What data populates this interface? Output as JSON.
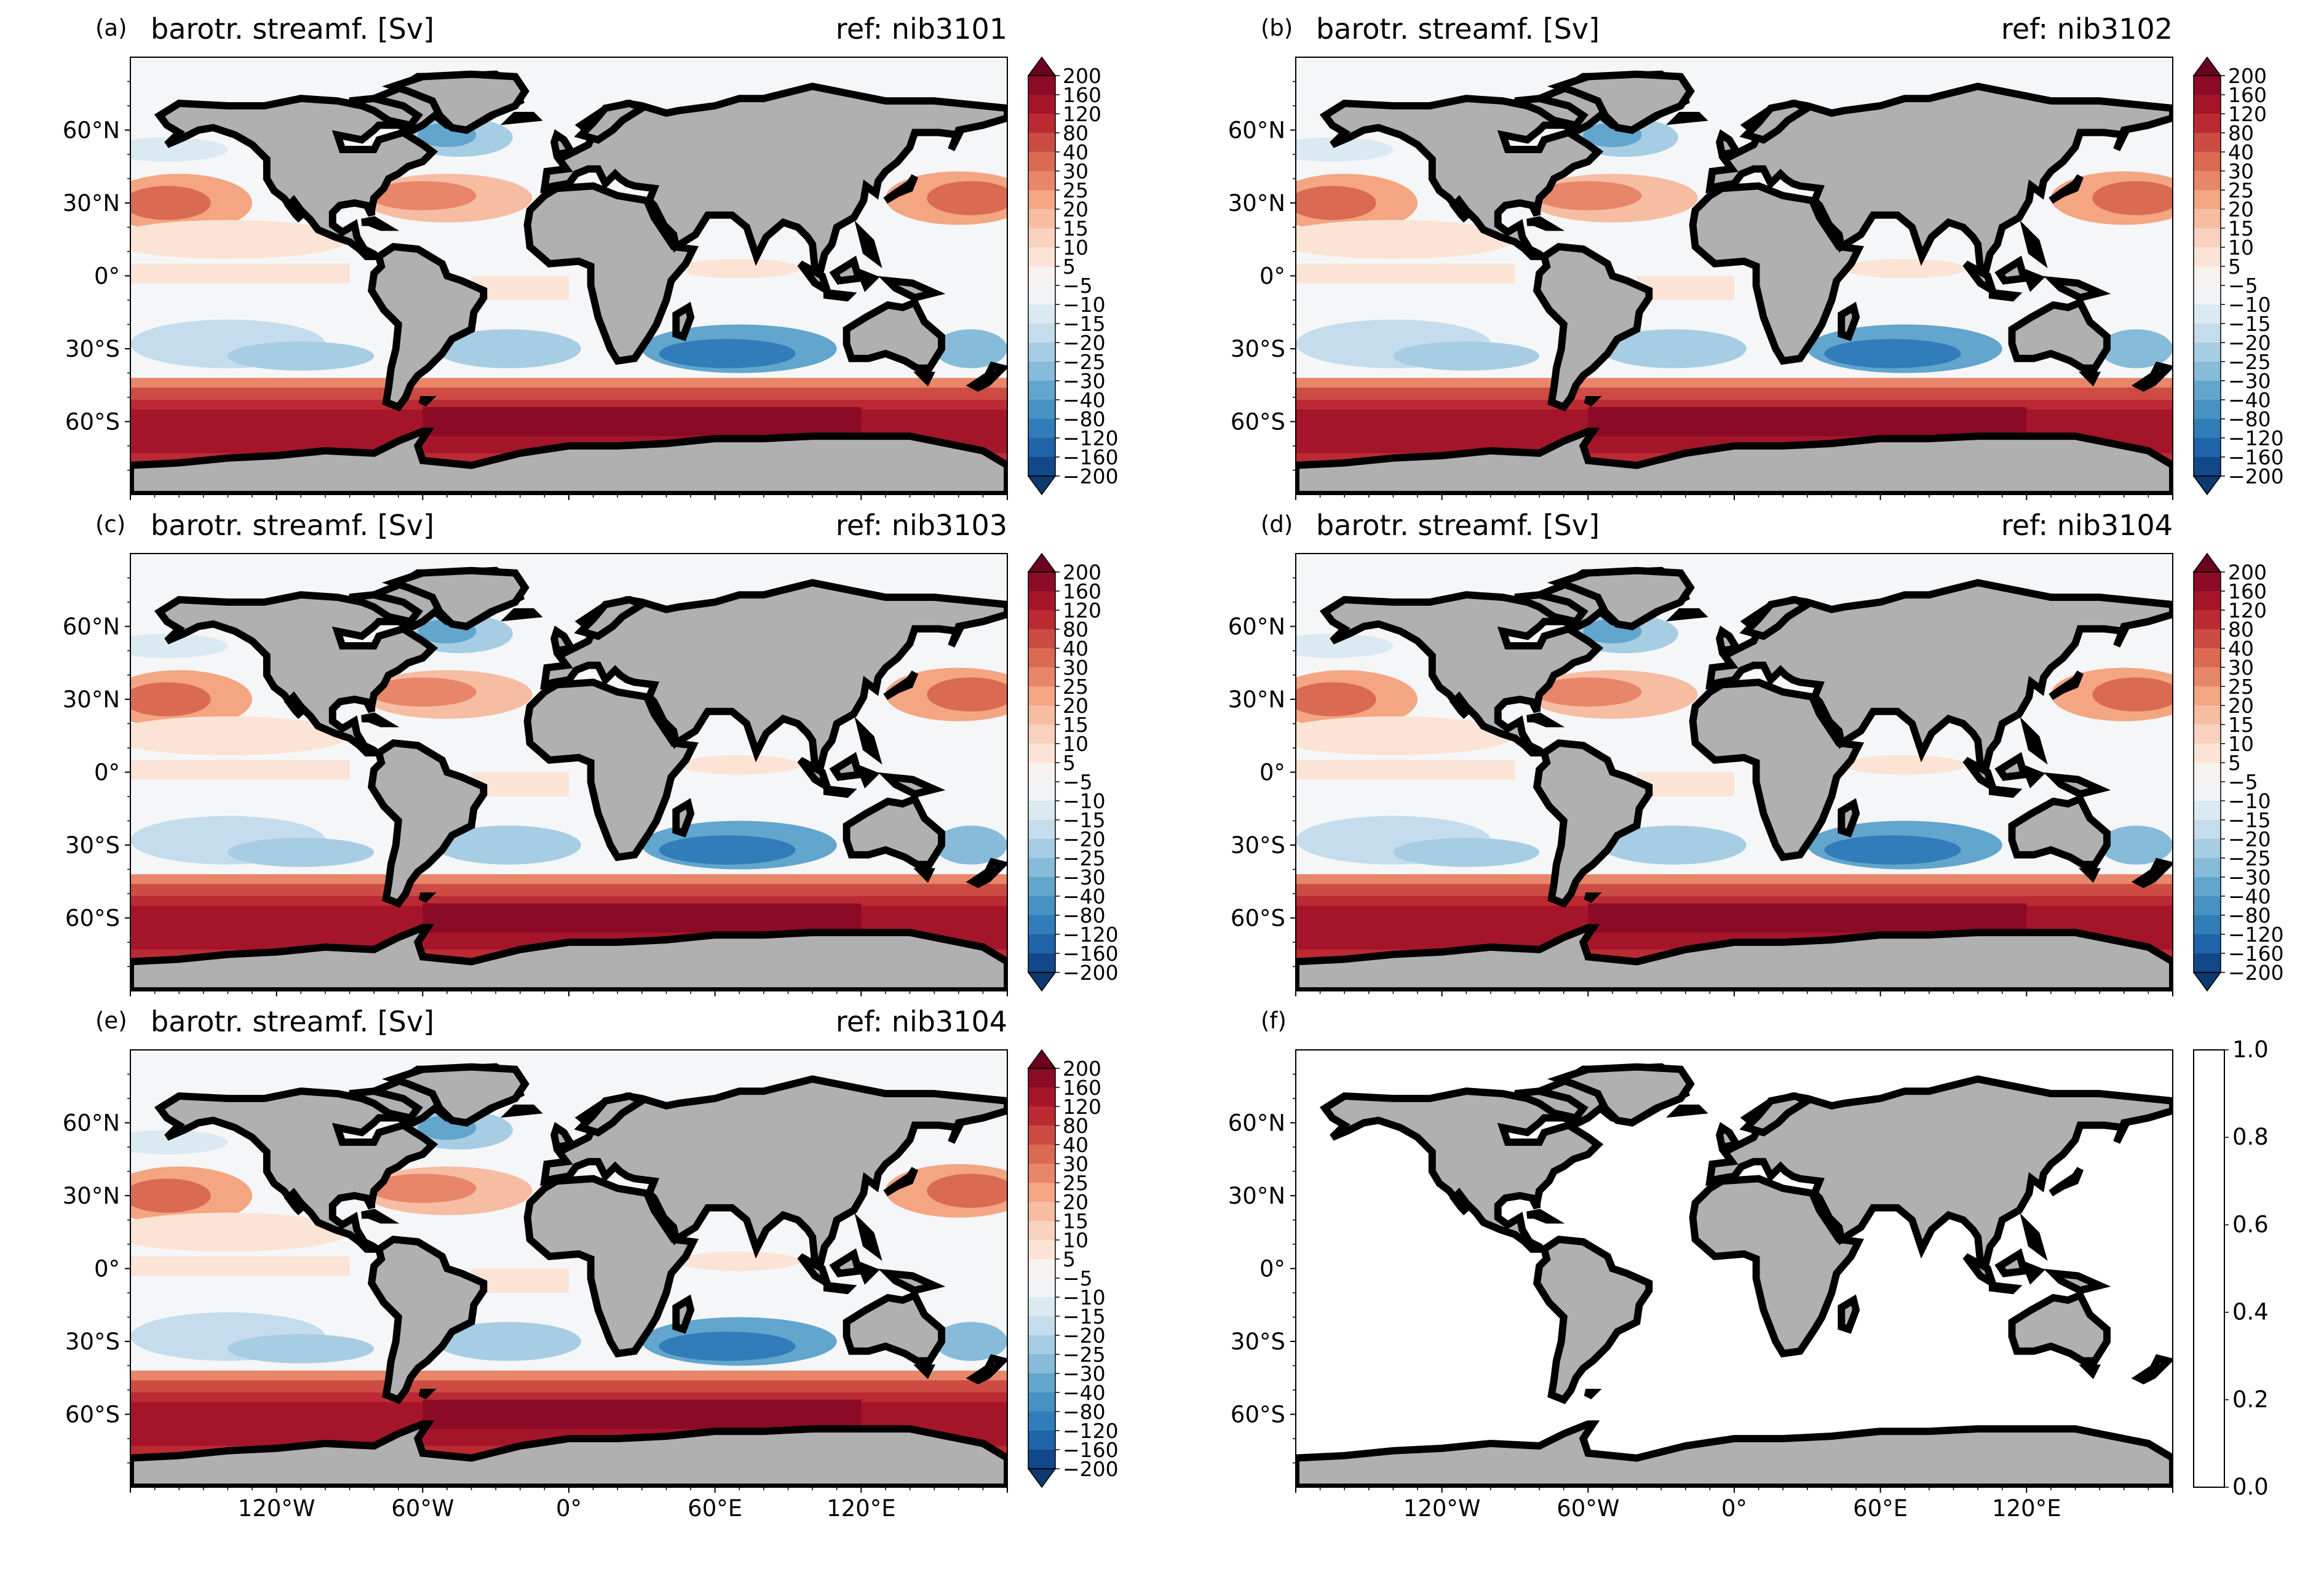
{
  "panels": [
    {
      "id": "a",
      "letter": "(a)",
      "title": "barotr. streamf. [Sv]",
      "ref": "ref: nib3101",
      "has_data": true
    },
    {
      "id": "b",
      "letter": "(b)",
      "title": "barotr. streamf. [Sv]",
      "ref": "ref: nib3102",
      "has_data": true
    },
    {
      "id": "c",
      "letter": "(c)",
      "title": "barotr. streamf. [Sv]",
      "ref": "ref: nib3103",
      "has_data": true
    },
    {
      "id": "d",
      "letter": "(d)",
      "title": "barotr. streamf. [Sv]",
      "ref": "ref: nib3104",
      "has_data": true
    },
    {
      "id": "e",
      "letter": "(e)",
      "title": "barotr. streamf. [Sv]",
      "ref": "ref: nib3104",
      "has_data": true
    },
    {
      "id": "f",
      "letter": "(f)",
      "title": "",
      "ref": "",
      "has_data": false
    }
  ],
  "lat_ticks": [
    {
      "value": 60,
      "label": "60°N"
    },
    {
      "value": 30,
      "label": "30°N"
    },
    {
      "value": 0,
      "label": "0°"
    },
    {
      "value": -30,
      "label": "30°S"
    },
    {
      "value": -60,
      "label": "60°S"
    }
  ],
  "lon_ticks": [
    {
      "value": -120,
      "label": "120°W"
    },
    {
      "value": -60,
      "label": "60°W"
    },
    {
      "value": 0,
      "label": "0°"
    },
    {
      "value": 60,
      "label": "60°E"
    },
    {
      "value": 120,
      "label": "120°E"
    }
  ],
  "map_extent": {
    "lon": [
      -180,
      180
    ],
    "lat": [
      -90,
      90
    ]
  },
  "colorbar": {
    "levels": [
      "200",
      "160",
      "120",
      "80",
      "40",
      "30",
      "25",
      "20",
      "15",
      "10",
      "5",
      "−5",
      "−10",
      "−15",
      "−20",
      "−25",
      "−30",
      "−40",
      "−80",
      "−120",
      "−160",
      "−200"
    ],
    "colors": [
      "#8b0a26",
      "#a51529",
      "#bb2a33",
      "#cc4c44",
      "#db6a52",
      "#e8866a",
      "#f4a582",
      "#f6bda2",
      "#f9d2bf",
      "#fbe3d5",
      "#f7f2ee",
      "#f1f4f6",
      "#dbe9f2",
      "#c5dcec",
      "#a6cde3",
      "#86bcda",
      "#62a5cd",
      "#4692c3",
      "#307dba",
      "#1f63a8",
      "#12488a"
    ],
    "under_color": "#0b3a70",
    "over_color": "#6d0020"
  },
  "empty_colorbar": {
    "ticks": [
      "1.0",
      "0.8",
      "0.6",
      "0.4",
      "0.2",
      "0.0"
    ]
  },
  "colors": {
    "land": "#b0b0b0",
    "coast": "#000000",
    "ocean_neutral": "#f5f6f7"
  }
}
